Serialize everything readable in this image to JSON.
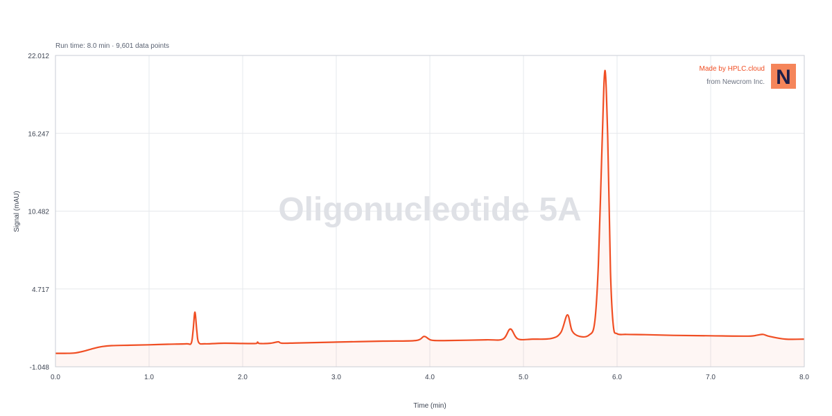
{
  "subtitle": "Run time: 8.0 min · 9,601 data points",
  "watermark": "Oligonucleotide 5A",
  "brand": {
    "made_by": "Made by HPLC.cloud",
    "from": "from Newcrom Inc.",
    "logo_letter": "N",
    "logo_color": "#f5855a",
    "accent_color": "#f04e23"
  },
  "chart_data": {
    "type": "line",
    "xlabel": "Time (min)",
    "ylabel": "Signal (mAU)",
    "xlim": [
      0,
      8
    ],
    "ylim": [
      -1.048,
      22.012
    ],
    "x_ticks": [
      "0.0",
      "1.0",
      "2.0",
      "3.0",
      "4.0",
      "5.0",
      "6.0",
      "7.0",
      "8.0"
    ],
    "y_ticks": [
      "-1.048",
      "4.717",
      "10.482",
      "16.247",
      "22.012"
    ],
    "grid": true,
    "series": [
      {
        "color": "#f04e23",
        "points": [
          [
            0.0,
            -0.05
          ],
          [
            0.1,
            -0.05
          ],
          [
            0.2,
            -0.03
          ],
          [
            0.3,
            0.1
          ],
          [
            0.4,
            0.3
          ],
          [
            0.5,
            0.45
          ],
          [
            0.6,
            0.52
          ],
          [
            0.8,
            0.55
          ],
          [
            1.0,
            0.58
          ],
          [
            1.2,
            0.62
          ],
          [
            1.4,
            0.65
          ],
          [
            1.45,
            0.7
          ],
          [
            1.47,
            1.6
          ],
          [
            1.49,
            3.0
          ],
          [
            1.51,
            1.6
          ],
          [
            1.53,
            0.75
          ],
          [
            1.6,
            0.65
          ],
          [
            1.8,
            0.7
          ],
          [
            2.0,
            0.68
          ],
          [
            2.14,
            0.68
          ],
          [
            2.16,
            0.78
          ],
          [
            2.18,
            0.68
          ],
          [
            2.3,
            0.7
          ],
          [
            2.38,
            0.8
          ],
          [
            2.42,
            0.7
          ],
          [
            2.6,
            0.72
          ],
          [
            3.0,
            0.78
          ],
          [
            3.5,
            0.85
          ],
          [
            3.85,
            0.9
          ],
          [
            3.94,
            1.2
          ],
          [
            4.02,
            0.92
          ],
          [
            4.2,
            0.9
          ],
          [
            4.6,
            0.95
          ],
          [
            4.78,
            1.0
          ],
          [
            4.86,
            1.75
          ],
          [
            4.94,
            1.02
          ],
          [
            5.1,
            1.0
          ],
          [
            5.3,
            1.05
          ],
          [
            5.4,
            1.5
          ],
          [
            5.47,
            2.8
          ],
          [
            5.52,
            1.6
          ],
          [
            5.6,
            1.2
          ],
          [
            5.7,
            1.3
          ],
          [
            5.76,
            2.2
          ],
          [
            5.8,
            6.5
          ],
          [
            5.84,
            15.5
          ],
          [
            5.87,
            20.9
          ],
          [
            5.9,
            16.0
          ],
          [
            5.93,
            6.0
          ],
          [
            5.96,
            2.0
          ],
          [
            6.0,
            1.4
          ],
          [
            6.1,
            1.35
          ],
          [
            6.3,
            1.33
          ],
          [
            6.6,
            1.28
          ],
          [
            7.0,
            1.25
          ],
          [
            7.4,
            1.22
          ],
          [
            7.5,
            1.3
          ],
          [
            7.56,
            1.35
          ],
          [
            7.63,
            1.2
          ],
          [
            7.8,
            1.0
          ],
          [
            8.0,
            1.0
          ]
        ]
      }
    ]
  }
}
